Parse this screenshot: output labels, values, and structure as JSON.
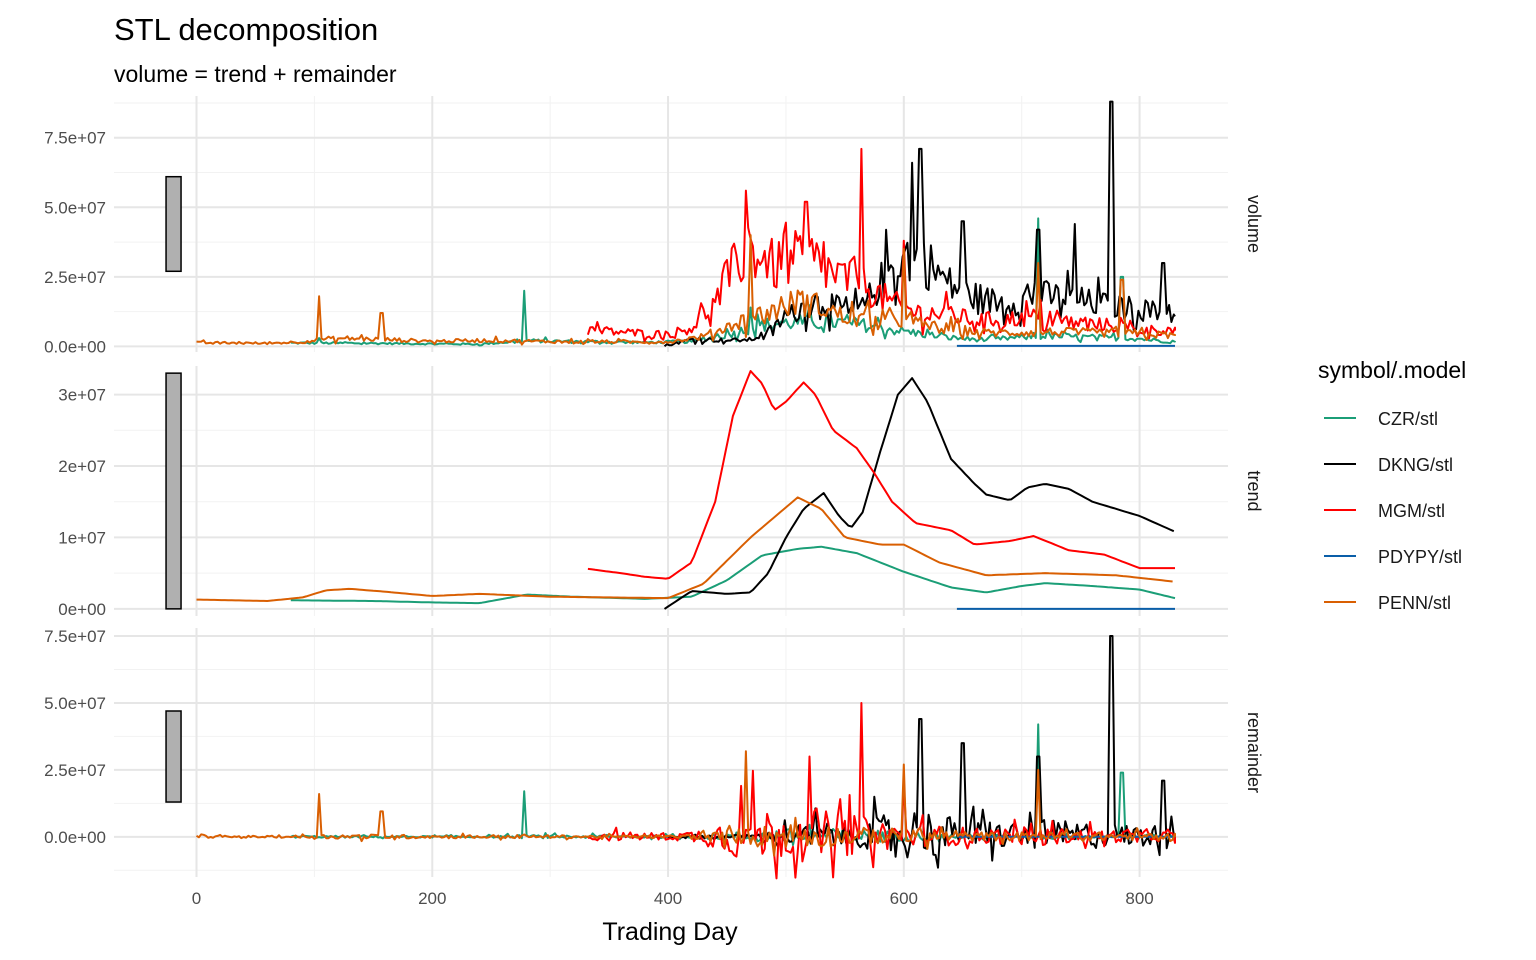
{
  "chart_data": {
    "type": "line",
    "title": "STL decomposition",
    "subtitle": "volume = trend + remainder",
    "xlabel": "Trading Day",
    "ylabel": "",
    "xlim": [
      -70,
      875
    ],
    "x_ticks": [
      0,
      200,
      400,
      600,
      800
    ],
    "x_tick_labels": [
      "0",
      "200",
      "400",
      "600",
      "800"
    ],
    "grid": true,
    "legend": {
      "title": "symbol/.model",
      "position": "right"
    },
    "colors": {
      "CZR/stl": "#1b9e77",
      "DKNG/stl": "#000000",
      "MGM/stl": "#ff0000",
      "PDYPY/stl": "#0a5ea8",
      "PENN/stl": "#d95f02"
    },
    "panels": [
      {
        "name": "volume",
        "ylim": [
          -2000000,
          90000000
        ],
        "y_ticks": [
          0,
          25000000,
          50000000,
          75000000
        ],
        "y_tick_labels": [
          "0.0e+00",
          "2.5e+07",
          "5.0e+07",
          "7.5e+07"
        ],
        "scale_bar": [
          27000000,
          61000000
        ]
      },
      {
        "name": "trend",
        "ylim": [
          -1000000,
          34000000
        ],
        "y_ticks": [
          0,
          10000000,
          20000000,
          30000000
        ],
        "y_tick_labels": [
          "0e+00",
          "1e+07",
          "2e+07",
          "3e+07"
        ],
        "scale_bar": [
          0,
          33000000
        ]
      },
      {
        "name": "remainder",
        "ylim": [
          -15000000,
          78000000
        ],
        "y_ticks": [
          0,
          25000000,
          50000000,
          75000000
        ],
        "y_tick_labels": [
          "0.0e+00",
          "2.5e+07",
          "5.0e+07",
          "7.5e+07"
        ],
        "scale_bar": [
          13000000,
          47000000
        ]
      }
    ],
    "series": [
      {
        "name": "CZR/stl",
        "trend": [
          [
            80,
            1200000
          ],
          [
            150,
            1100000
          ],
          [
            200,
            900000
          ],
          [
            240,
            800000
          ],
          [
            280,
            2000000
          ],
          [
            320,
            1700000
          ],
          [
            380,
            1400000
          ],
          [
            420,
            1700000
          ],
          [
            450,
            4000000
          ],
          [
            480,
            7500000
          ],
          [
            510,
            8400000
          ],
          [
            530,
            8700000
          ],
          [
            560,
            7800000
          ],
          [
            600,
            5200000
          ],
          [
            640,
            3000000
          ],
          [
            670,
            2300000
          ],
          [
            700,
            3200000
          ],
          [
            720,
            3600000
          ],
          [
            760,
            3200000
          ],
          [
            800,
            2700000
          ],
          [
            830,
            1500000
          ]
        ],
        "volume_peaks": [
          [
            104,
            3000000
          ],
          [
            278,
            20000000
          ],
          [
            470,
            14000000
          ],
          [
            714,
            46000000
          ],
          [
            785,
            25000000
          ]
        ],
        "remainder_peaks": [
          [
            278,
            17000000
          ],
          [
            714,
            42000000
          ],
          [
            785,
            24000000
          ]
        ]
      },
      {
        "name": "DKNG/stl",
        "trend": [
          [
            397,
            0
          ],
          [
            420,
            2500000
          ],
          [
            450,
            2100000
          ],
          [
            470,
            2300000
          ],
          [
            485,
            5000000
          ],
          [
            500,
            10000000
          ],
          [
            515,
            14000000
          ],
          [
            532,
            16200000
          ],
          [
            545,
            13000000
          ],
          [
            555,
            11300000
          ],
          [
            565,
            13500000
          ],
          [
            580,
            22000000
          ],
          [
            595,
            30000000
          ],
          [
            607,
            32300000
          ],
          [
            620,
            29000000
          ],
          [
            640,
            21000000
          ],
          [
            660,
            17500000
          ],
          [
            670,
            16000000
          ],
          [
            690,
            15200000
          ],
          [
            705,
            17000000
          ],
          [
            720,
            17500000
          ],
          [
            740,
            16800000
          ],
          [
            760,
            15000000
          ],
          [
            800,
            13000000
          ],
          [
            830,
            10800000
          ]
        ],
        "volume_peaks": [
          [
            607,
            66000000
          ],
          [
            614,
            71000000
          ],
          [
            650,
            45000000
          ],
          [
            714,
            42000000
          ],
          [
            745,
            44000000
          ],
          [
            776,
            88000000
          ],
          [
            820,
            30000000
          ]
        ],
        "remainder_peaks": [
          [
            614,
            44000000
          ],
          [
            650,
            35000000
          ],
          [
            714,
            30000000
          ],
          [
            776,
            75000000
          ],
          [
            820,
            21000000
          ]
        ]
      },
      {
        "name": "MGM/stl",
        "trend": [
          [
            332,
            5600000
          ],
          [
            360,
            5000000
          ],
          [
            380,
            4500000
          ],
          [
            400,
            4200000
          ],
          [
            420,
            6500000
          ],
          [
            440,
            15000000
          ],
          [
            455,
            27000000
          ],
          [
            470,
            33300000
          ],
          [
            480,
            31500000
          ],
          [
            490,
            27800000
          ],
          [
            500,
            29000000
          ],
          [
            515,
            31700000
          ],
          [
            525,
            30000000
          ],
          [
            540,
            25000000
          ],
          [
            560,
            22500000
          ],
          [
            575,
            19000000
          ],
          [
            590,
            15000000
          ],
          [
            610,
            12000000
          ],
          [
            640,
            11000000
          ],
          [
            660,
            9000000
          ],
          [
            690,
            9500000
          ],
          [
            710,
            10200000
          ],
          [
            740,
            8200000
          ],
          [
            770,
            7600000
          ],
          [
            800,
            5700000
          ],
          [
            830,
            5700000
          ]
        ],
        "volume_peaks": [
          [
            466,
            56000000
          ],
          [
            517,
            52000000
          ],
          [
            564,
            71000000
          ],
          [
            600,
            38000000
          ]
        ],
        "remainder_peaks": [
          [
            520,
            30000000
          ],
          [
            564,
            50000000
          ],
          [
            600,
            20000000
          ]
        ]
      },
      {
        "name": "PDYPY/stl",
        "trend": [
          [
            645,
            0
          ],
          [
            830,
            0
          ]
        ],
        "volume_level": [
          [
            645,
            200000
          ],
          [
            830,
            200000
          ]
        ]
      },
      {
        "name": "PENN/stl",
        "trend": [
          [
            0,
            1300000
          ],
          [
            30,
            1200000
          ],
          [
            60,
            1100000
          ],
          [
            90,
            1600000
          ],
          [
            110,
            2600000
          ],
          [
            130,
            2800000
          ],
          [
            160,
            2400000
          ],
          [
            200,
            1800000
          ],
          [
            240,
            2100000
          ],
          [
            300,
            1700000
          ],
          [
            350,
            1600000
          ],
          [
            400,
            1500000
          ],
          [
            430,
            3500000
          ],
          [
            470,
            10000000
          ],
          [
            510,
            15600000
          ],
          [
            530,
            14000000
          ],
          [
            550,
            10000000
          ],
          [
            580,
            9000000
          ],
          [
            600,
            9000000
          ],
          [
            630,
            6500000
          ],
          [
            670,
            4700000
          ],
          [
            720,
            5000000
          ],
          [
            780,
            4700000
          ],
          [
            830,
            3800000
          ]
        ],
        "volume_peaks": [
          [
            104,
            18000000
          ],
          [
            157,
            12000000
          ],
          [
            470,
            40000000
          ],
          [
            600,
            35000000
          ],
          [
            714,
            30000000
          ],
          [
            785,
            24000000
          ]
        ],
        "remainder_peaks": [
          [
            104,
            16000000
          ],
          [
            157,
            9500000
          ],
          [
            466,
            32000000
          ],
          [
            600,
            27000000
          ],
          [
            714,
            25000000
          ]
        ]
      }
    ]
  }
}
